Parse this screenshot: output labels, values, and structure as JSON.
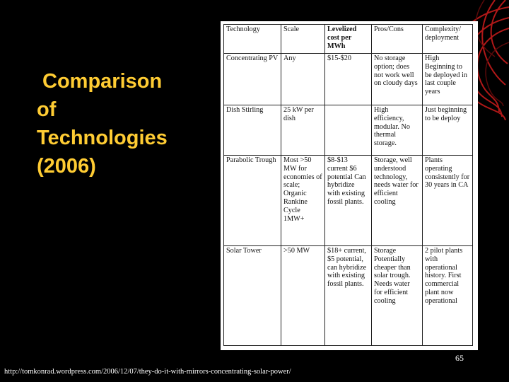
{
  "slide": {
    "title_lines": [
      "Comparison",
      "of",
      "Technologies",
      "(2006)"
    ],
    "slide_number": "65",
    "source_url": "http://tomkonrad.wordpress.com/2006/12/07/they-do-it-with-mirrors-concentrating-solar-power/"
  },
  "table": {
    "headers": [
      "Technology",
      "Scale",
      "Levelized cost per MWh",
      "Pros/Cons",
      "Complexity/ deployment"
    ],
    "rows": [
      [
        "Concentrating PV",
        "Any",
        "$15-$20",
        "No storage option; does not work well on cloudy days",
        "High Beginning to be deployed in last couple years"
      ],
      [
        "Dish Stirling",
        "25 kW per dish",
        "",
        "High efficiency, modular. No thermal storage.",
        "Just beginning to be deploy"
      ],
      [
        "Parabolic Trough",
        "Most >50 MW for economies of scale; Organic Rankine Cycle 1MW+",
        "$8-$13 current $6 potential Can hybridize with existing fossil plants.",
        "Storage, well understood technology, needs water for efficient cooling",
        "Plants operating consistently for 30 years in CA"
      ],
      [
        "Solar Tower",
        ">50 MW",
        "$18+ current, $5 potential, can hybridize with existing fossil plants.",
        "Storage Potentially cheaper than solar trough. Needs water for efficient cooling",
        "2 pilot plants with operational history. First commercial plant now operational"
      ]
    ]
  },
  "colors": {
    "background": "#000000",
    "title": "#ffcc33",
    "text": "#ffffff"
  },
  "icons": {
    "corner_decoration": "red-swirl-decoration"
  }
}
